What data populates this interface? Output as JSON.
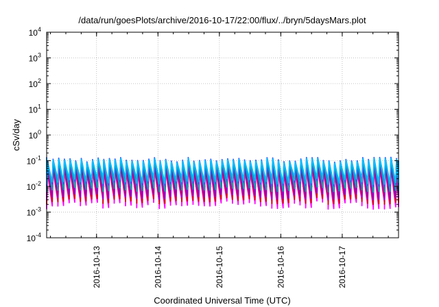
{
  "chart_data": {
    "type": "line",
    "title": "/data/run/goesPlots/archive/2016-10-17/22:00/flux/../bryn/5daysMars.plot",
    "xlabel": "Coordinated Universal Time (UTC)",
    "ylabel": "cSv/day",
    "yscale": "log",
    "ylim": [
      0.0001,
      10000
    ],
    "xlim": [
      "2016-10-12T04:30",
      "2016-10-17T22:00"
    ],
    "x_ticks": [
      "2016-10-13",
      "2016-10-14",
      "2016-10-15",
      "2016-10-16",
      "2016-10-17"
    ],
    "y_ticks": [
      {
        "value": 0.0001,
        "base": "10",
        "exp": "-4"
      },
      {
        "value": 0.001,
        "base": "10",
        "exp": "-3"
      },
      {
        "value": 0.01,
        "base": "10",
        "exp": "-2"
      },
      {
        "value": 0.1,
        "base": "10",
        "exp": "-1"
      },
      {
        "value": 1,
        "base": "10",
        "exp": "0"
      },
      {
        "value": 10,
        "base": "10",
        "exp": "1"
      },
      {
        "value": 100,
        "base": "10",
        "exp": "2"
      },
      {
        "value": 1000,
        "base": "10",
        "exp": "3"
      },
      {
        "value": 10000,
        "base": "10",
        "exp": "4"
      }
    ],
    "grid": true,
    "sawtooth_period_hours": 2.2,
    "series": [
      {
        "color": "#ff00ff",
        "peak": 0.04,
        "min_range": [
          0.0013,
          0.003
        ]
      },
      {
        "color": "#dd0000",
        "peak": 0.05,
        "min_range": [
          0.002,
          0.004
        ]
      },
      {
        "color": "#9400d3",
        "peak": 0.06,
        "min_range": [
          0.003,
          0.006
        ]
      },
      {
        "color": "#00aaaa",
        "peak": 0.09,
        "min_range": [
          0.006,
          0.01
        ]
      },
      {
        "color": "#3060ff",
        "peak": 0.11,
        "min_range": [
          0.01,
          0.018
        ]
      },
      {
        "color": "#00bfff",
        "peak": 0.1,
        "min_range": [
          0.012,
          0.022
        ]
      }
    ]
  }
}
